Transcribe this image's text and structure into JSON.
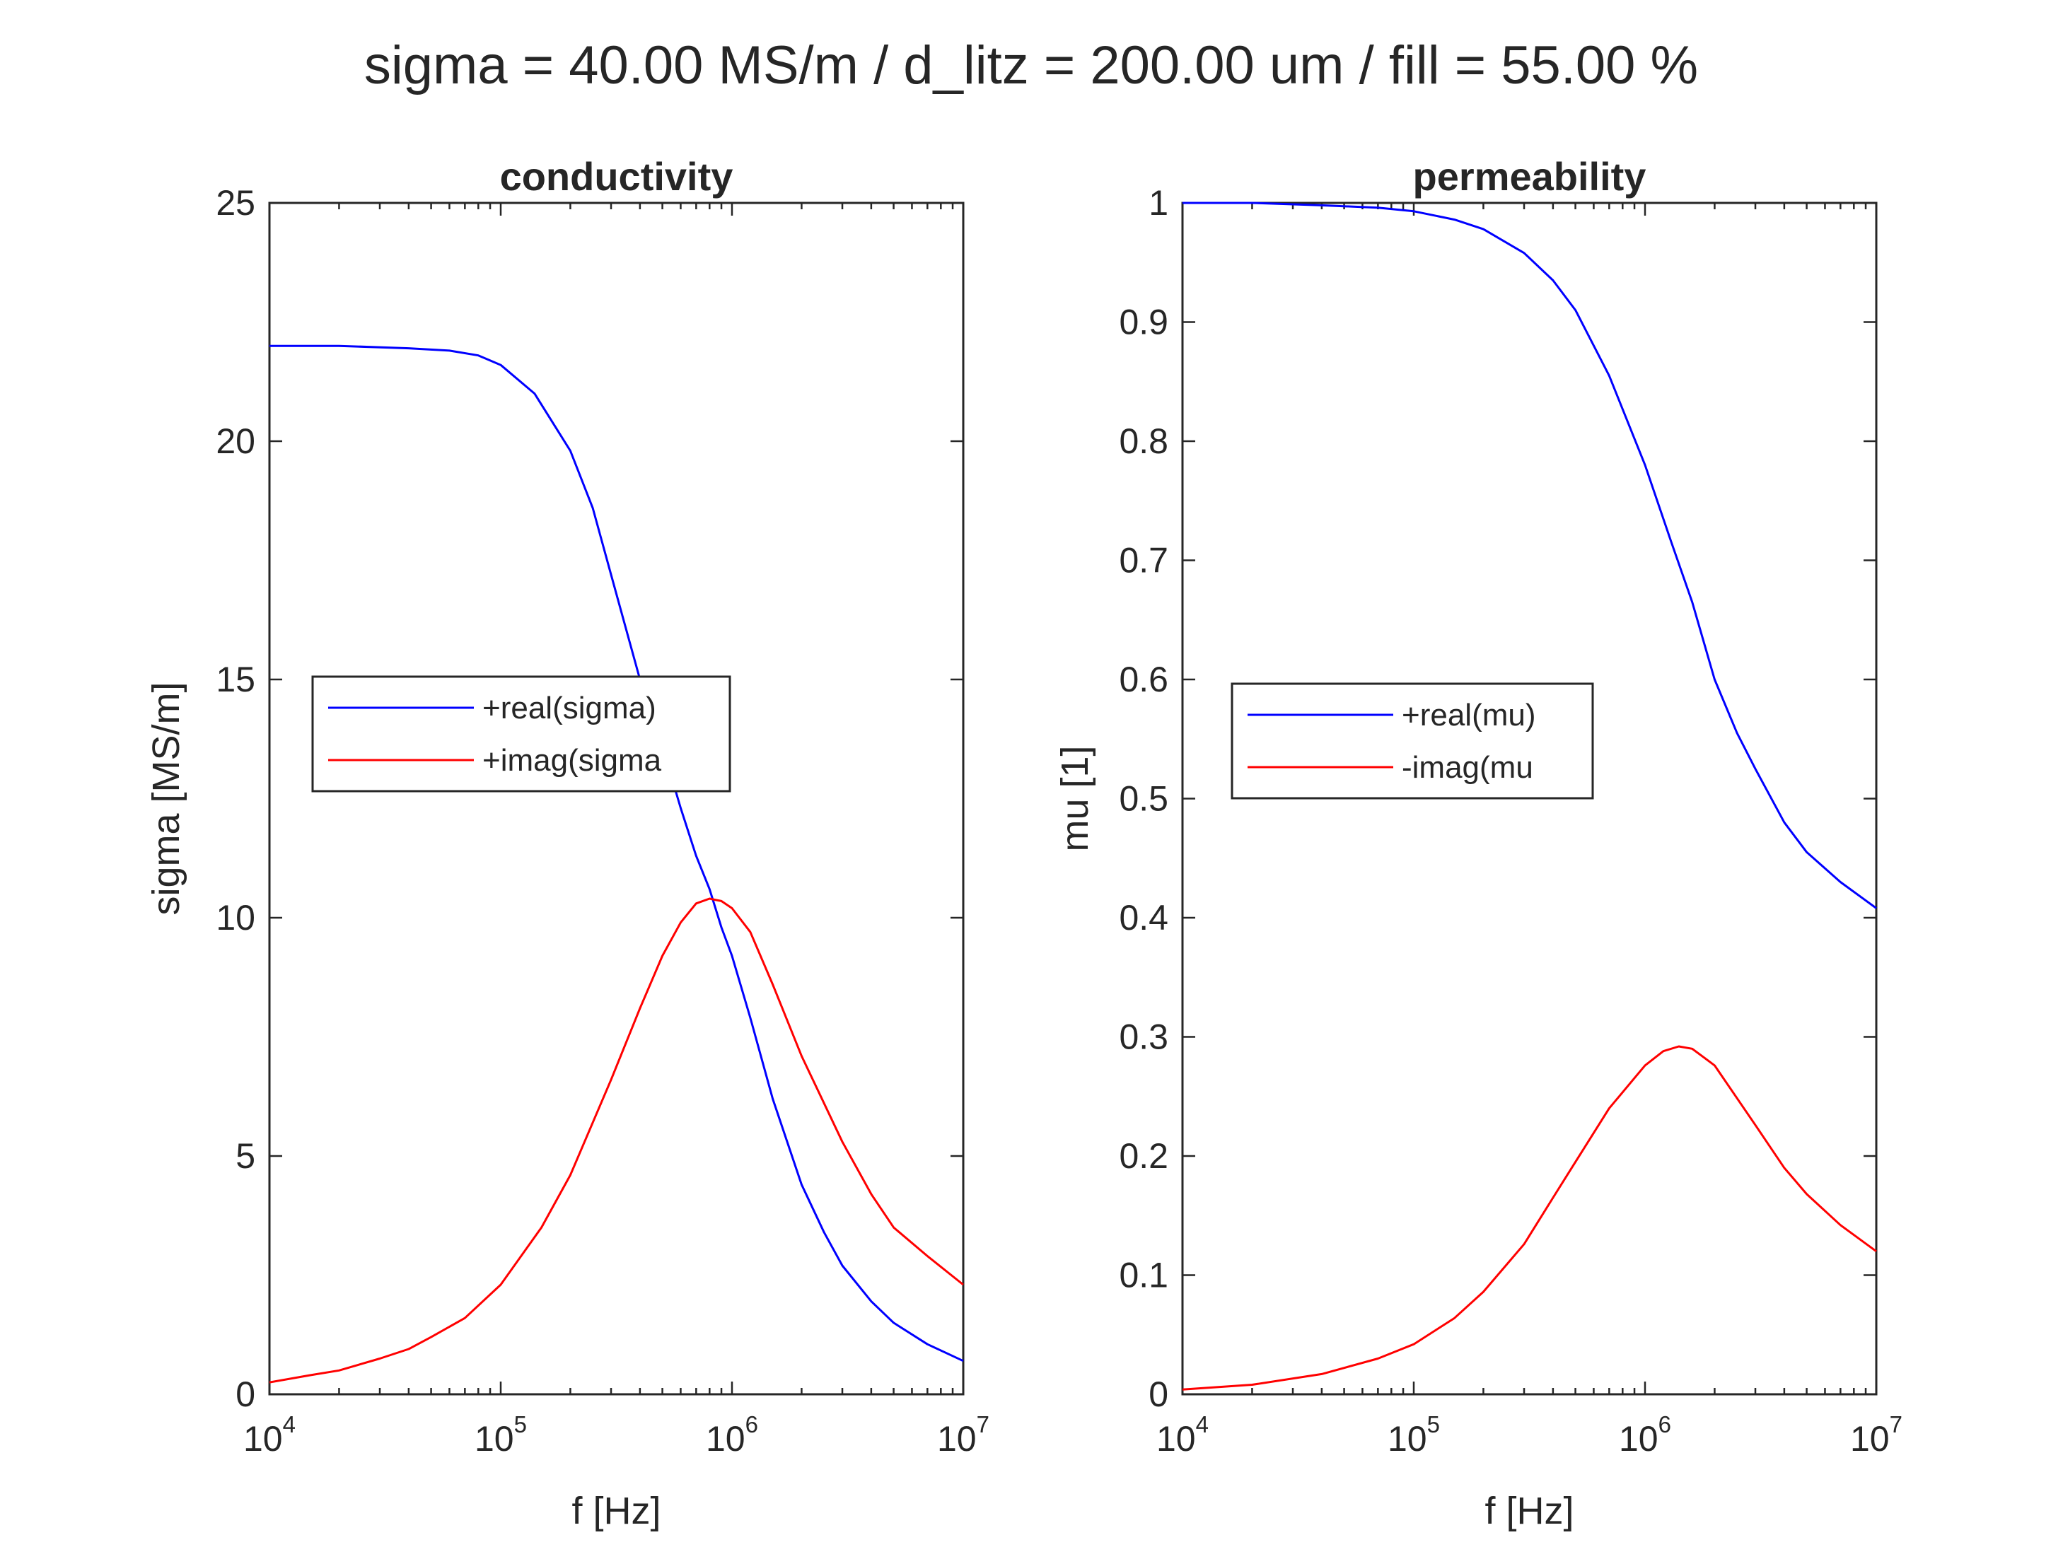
{
  "figure": {
    "suptitle": "sigma = 40.00 MS/m / d_litz = 200.00 um / fill = 55.00 %"
  },
  "chart_data": [
    {
      "type": "line",
      "title": "conductivity",
      "xlabel": "f [Hz]",
      "ylabel": "sigma [MS/m]",
      "xscale": "log",
      "xlim": [
        10000,
        10000000
      ],
      "ylim": [
        0,
        25
      ],
      "xticks": [
        {
          "base": "10",
          "exp": "4",
          "value": 10000
        },
        {
          "base": "10",
          "exp": "5",
          "value": 100000
        },
        {
          "base": "10",
          "exp": "6",
          "value": 1000000
        },
        {
          "base": "10",
          "exp": "7",
          "value": 10000000
        }
      ],
      "yticks": [
        {
          "label": "0",
          "value": 0
        },
        {
          "label": "5",
          "value": 5
        },
        {
          "label": "10",
          "value": 10
        },
        {
          "label": "15",
          "value": 15
        },
        {
          "label": "20",
          "value": 20
        },
        {
          "label": "25",
          "value": 25
        }
      ],
      "grid": false,
      "legend_position": "center-left",
      "series": [
        {
          "name": "+real(sigma)",
          "color": "#0000ff",
          "x": [
            10000,
            20000,
            40000,
            60000,
            80000,
            100000,
            140000,
            200000,
            250000,
            300000,
            400000,
            500000,
            600000,
            700000,
            800000,
            900000,
            1000000,
            1200000,
            1500000,
            2000000,
            2500000,
            3000000,
            4000000,
            5000000,
            7000000,
            10000000
          ],
          "y": [
            22.0,
            22.0,
            21.95,
            21.9,
            21.8,
            21.6,
            21.0,
            19.8,
            18.6,
            17.2,
            15.0,
            13.6,
            12.3,
            11.3,
            10.6,
            9.8,
            9.2,
            7.9,
            6.2,
            4.4,
            3.4,
            2.7,
            1.95,
            1.5,
            1.05,
            0.7
          ]
        },
        {
          "name": "+imag(sigma",
          "color": "#ff0000",
          "x": [
            10000,
            15000,
            20000,
            30000,
            40000,
            50000,
            70000,
            100000,
            150000,
            200000,
            300000,
            400000,
            500000,
            600000,
            700000,
            800000,
            900000,
            1000000,
            1200000,
            1500000,
            2000000,
            3000000,
            4000000,
            5000000,
            7000000,
            10000000
          ],
          "y": [
            0.25,
            0.4,
            0.5,
            0.75,
            0.95,
            1.2,
            1.6,
            2.3,
            3.5,
            4.6,
            6.6,
            8.1,
            9.2,
            9.9,
            10.3,
            10.4,
            10.35,
            10.2,
            9.7,
            8.6,
            7.1,
            5.3,
            4.2,
            3.5,
            2.9,
            2.3
          ]
        }
      ]
    },
    {
      "type": "line",
      "title": "permeability",
      "xlabel": "f [Hz]",
      "ylabel": "mu [1]",
      "xscale": "log",
      "xlim": [
        10000,
        10000000
      ],
      "ylim": [
        0,
        1
      ],
      "xticks": [
        {
          "base": "10",
          "exp": "4",
          "value": 10000
        },
        {
          "base": "10",
          "exp": "5",
          "value": 100000
        },
        {
          "base": "10",
          "exp": "6",
          "value": 1000000
        },
        {
          "base": "10",
          "exp": "7",
          "value": 10000000
        }
      ],
      "yticks": [
        {
          "label": "0",
          "value": 0
        },
        {
          "label": "0.1",
          "value": 0.1
        },
        {
          "label": "0.2",
          "value": 0.2
        },
        {
          "label": "0.3",
          "value": 0.3
        },
        {
          "label": "0.4",
          "value": 0.4
        },
        {
          "label": "0.5",
          "value": 0.5
        },
        {
          "label": "0.6",
          "value": 0.6
        },
        {
          "label": "0.7",
          "value": 0.7
        },
        {
          "label": "0.8",
          "value": 0.8
        },
        {
          "label": "0.9",
          "value": 0.9
        },
        {
          "label": "1",
          "value": 1
        }
      ],
      "grid": false,
      "legend_position": "center-left",
      "series": [
        {
          "name": "+real(mu)",
          "color": "#0000ff",
          "x": [
            10000,
            20000,
            40000,
            70000,
            100000,
            150000,
            200000,
            300000,
            400000,
            500000,
            700000,
            1000000,
            1300000,
            1600000,
            2000000,
            2500000,
            3000000,
            4000000,
            5000000,
            7000000,
            10000000
          ],
          "y": [
            1.0,
            1.0,
            0.998,
            0.996,
            0.993,
            0.986,
            0.978,
            0.958,
            0.935,
            0.91,
            0.855,
            0.78,
            0.715,
            0.665,
            0.6,
            0.555,
            0.525,
            0.48,
            0.455,
            0.43,
            0.408
          ]
        },
        {
          "name": "-imag(mu",
          "color": "#ff0000",
          "x": [
            10000,
            20000,
            40000,
            70000,
            100000,
            150000,
            200000,
            300000,
            400000,
            500000,
            700000,
            1000000,
            1200000,
            1400000,
            1600000,
            2000000,
            3000000,
            4000000,
            5000000,
            7000000,
            10000000
          ],
          "y": [
            0.004,
            0.008,
            0.017,
            0.03,
            0.042,
            0.064,
            0.086,
            0.126,
            0.165,
            0.195,
            0.24,
            0.276,
            0.288,
            0.292,
            0.29,
            0.276,
            0.226,
            0.19,
            0.168,
            0.142,
            0.12
          ]
        }
      ]
    }
  ]
}
